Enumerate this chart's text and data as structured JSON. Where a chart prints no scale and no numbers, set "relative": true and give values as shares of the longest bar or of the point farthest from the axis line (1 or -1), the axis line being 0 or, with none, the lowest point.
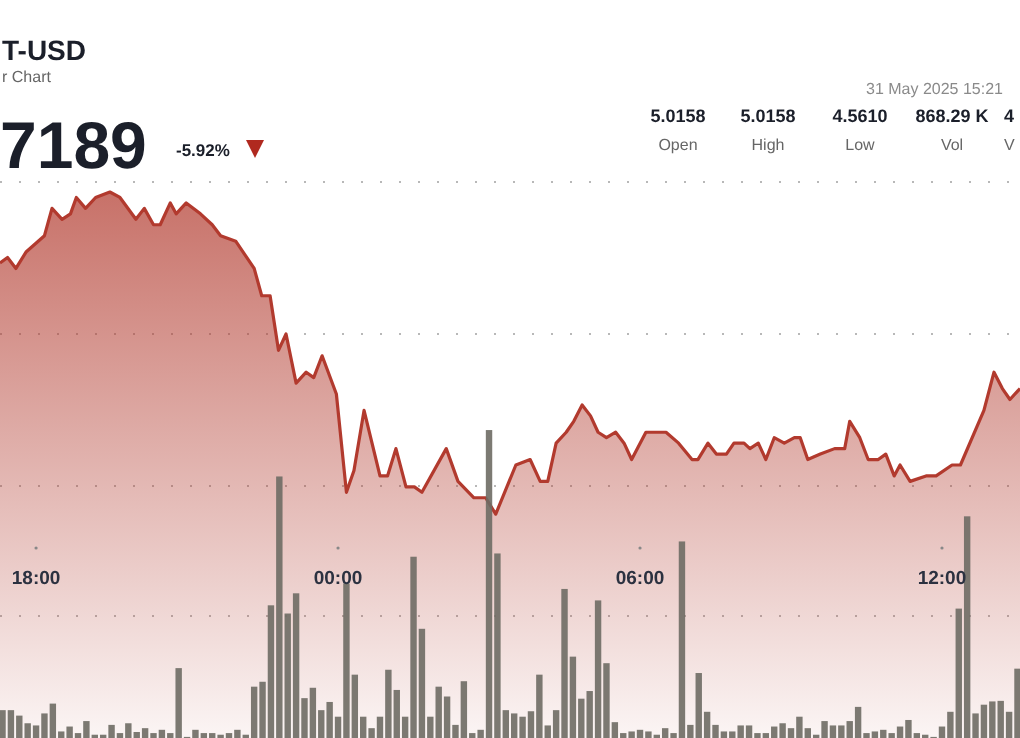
{
  "chart_data": {
    "type": "area",
    "title": "T-USD",
    "subtitle": "r Chart",
    "relative": true,
    "grid": true,
    "annotations": [
      "7189",
      "-5.92%",
      "31 May 2025 15:21",
      "5.0158",
      "Open",
      "5.0158",
      "High",
      "4.5610",
      "Low",
      "868.29 K",
      "Vol",
      "4",
      "V"
    ],
    "xlim": [
      "2025-05-30T17:17",
      "2025-05-31T13:33"
    ],
    "xticks": [
      {
        "value": "2025-05-30T18:00",
        "label": "18:00"
      },
      {
        "value": "2025-05-31T00:00",
        "label": "00:00"
      },
      {
        "value": "2025-05-31T06:00",
        "label": "06:00"
      },
      {
        "value": "2025-05-31T12:00",
        "label": "12:00"
      }
    ],
    "series": [
      {
        "color": "#b23a2e",
        "x": [
          "2025-05-30T17:17",
          "2025-05-30T17:26",
          "2025-05-30T17:36",
          "2025-05-30T17:48",
          "2025-05-30T18:10",
          "2025-05-30T18:19",
          "2025-05-30T18:31",
          "2025-05-30T18:41",
          "2025-05-30T18:48",
          "2025-05-30T18:59",
          "2025-05-30T19:11",
          "2025-05-30T19:28",
          "2025-05-30T19:40",
          "2025-05-30T19:59",
          "2025-05-30T20:09",
          "2025-05-30T20:20",
          "2025-05-30T20:28",
          "2025-05-30T20:40",
          "2025-05-30T20:47",
          "2025-05-30T20:59",
          "2025-05-30T21:16",
          "2025-05-30T21:30",
          "2025-05-30T21:40",
          "2025-05-30T21:58",
          "2025-05-30T22:20",
          "2025-05-30T22:29",
          "2025-05-30T22:39",
          "2025-05-30T22:49",
          "2025-05-30T22:58",
          "2025-05-30T23:10",
          "2025-05-30T23:22",
          "2025-05-30T23:31",
          "2025-05-30T23:41",
          "2025-05-30T23:58",
          "2025-05-31T00:10",
          "2025-05-31T00:19",
          "2025-05-31T00:31",
          "2025-05-31T00:50",
          "2025-05-31T00:59",
          "2025-05-31T01:09",
          "2025-05-31T01:21",
          "2025-05-31T01:31",
          "2025-05-31T01:40",
          "2025-05-31T02:09",
          "2025-05-31T02:23",
          "2025-05-31T02:42",
          "2025-05-31T02:56",
          "2025-05-31T03:08",
          "2025-05-31T03:32",
          "2025-05-31T03:49",
          "2025-05-31T04:01",
          "2025-05-31T04:10",
          "2025-05-31T04:20",
          "2025-05-31T04:32",
          "2025-05-31T04:41",
          "2025-05-31T04:51",
          "2025-05-31T05:01",
          "2025-05-31T05:10",
          "2025-05-31T05:20",
          "2025-05-31T05:31",
          "2025-05-31T05:41",
          "2025-05-31T05:50",
          "2025-05-31T06:07",
          "2025-05-31T06:31",
          "2025-05-31T06:46",
          "2025-05-31T07:02",
          "2025-05-31T07:09",
          "2025-05-31T07:21",
          "2025-05-31T07:31",
          "2025-05-31T07:43",
          "2025-05-31T07:52",
          "2025-05-31T08:04",
          "2025-05-31T08:11",
          "2025-05-31T08:21",
          "2025-05-31T08:30",
          "2025-05-31T08:40",
          "2025-05-31T08:52",
          "2025-05-31T09:04",
          "2025-05-31T09:11",
          "2025-05-31T09:20",
          "2025-05-31T09:35",
          "2025-05-31T09:52",
          "2025-05-31T10:04",
          "2025-05-31T10:10",
          "2025-05-31T10:22",
          "2025-05-31T10:32",
          "2025-05-31T10:44",
          "2025-05-31T10:53",
          "2025-05-31T11:03",
          "2025-05-31T11:10",
          "2025-05-31T11:22",
          "2025-05-31T11:41",
          "2025-05-31T11:53",
          "2025-05-31T12:12",
          "2025-05-31T12:22",
          "2025-05-31T12:50",
          "2025-05-31T13:02",
          "2025-05-31T13:12",
          "2025-05-31T13:21",
          "2025-05-31T13:33"
        ],
        "values": [
          0.87,
          0.88,
          0.86,
          0.89,
          0.92,
          0.97,
          0.95,
          0.96,
          0.99,
          0.97,
          0.99,
          1,
          0.99,
          0.95,
          0.97,
          0.94,
          0.94,
          0.98,
          0.96,
          0.98,
          0.96,
          0.94,
          0.92,
          0.91,
          0.86,
          0.81,
          0.81,
          0.71,
          0.74,
          0.65,
          0.67,
          0.66,
          0.7,
          0.63,
          0.45,
          0.49,
          0.6,
          0.48,
          0.48,
          0.53,
          0.46,
          0.46,
          0.45,
          0.53,
          0.47,
          0.44,
          0.44,
          0.41,
          0.5,
          0.51,
          0.47,
          0.47,
          0.54,
          0.56,
          0.58,
          0.61,
          0.59,
          0.56,
          0.55,
          0.56,
          0.54,
          0.51,
          0.56,
          0.56,
          0.54,
          0.51,
          0.51,
          0.54,
          0.52,
          0.52,
          0.54,
          0.54,
          0.53,
          0.54,
          0.51,
          0.55,
          0.54,
          0.55,
          0.55,
          0.51,
          0.52,
          0.53,
          0.53,
          0.58,
          0.55,
          0.51,
          0.51,
          0.52,
          0.48,
          0.5,
          0.47,
          0.48,
          0.48,
          0.5,
          0.5,
          0.6,
          0.67,
          0.64,
          0.62,
          0.64
        ]
      },
      {
        "type": "bar",
        "color": "#6e6c64",
        "x": [
          "2025-05-30T17:20",
          "2025-05-30T17:30",
          "2025-05-30T17:40",
          "2025-05-30T17:50",
          "2025-05-30T18:00",
          "2025-05-30T18:10",
          "2025-05-30T18:20",
          "2025-05-30T18:30",
          "2025-05-30T18:40",
          "2025-05-30T18:50",
          "2025-05-30T19:00",
          "2025-05-30T19:10",
          "2025-05-30T19:20",
          "2025-05-30T19:30",
          "2025-05-30T19:40",
          "2025-05-30T19:50",
          "2025-05-30T20:00",
          "2025-05-30T20:10",
          "2025-05-30T20:20",
          "2025-05-30T20:30",
          "2025-05-30T20:40",
          "2025-05-30T20:50",
          "2025-05-30T21:00",
          "2025-05-30T21:10",
          "2025-05-30T21:20",
          "2025-05-30T21:30",
          "2025-05-30T21:40",
          "2025-05-30T21:50",
          "2025-05-30T22:00",
          "2025-05-30T22:10",
          "2025-05-30T22:20",
          "2025-05-30T22:30",
          "2025-05-30T22:40",
          "2025-05-30T22:50",
          "2025-05-30T23:00",
          "2025-05-30T23:10",
          "2025-05-30T23:20",
          "2025-05-30T23:30",
          "2025-05-30T23:40",
          "2025-05-30T23:50",
          "2025-05-31T00:00",
          "2025-05-31T00:10",
          "2025-05-31T00:20",
          "2025-05-31T00:30",
          "2025-05-31T00:40",
          "2025-05-31T00:50",
          "2025-05-31T01:00",
          "2025-05-31T01:10",
          "2025-05-31T01:20",
          "2025-05-31T01:30",
          "2025-05-31T01:40",
          "2025-05-31T01:50",
          "2025-05-31T02:00",
          "2025-05-31T02:10",
          "2025-05-31T02:20",
          "2025-05-31T02:30",
          "2025-05-31T02:40",
          "2025-05-31T02:50",
          "2025-05-31T03:00",
          "2025-05-31T03:10",
          "2025-05-31T03:20",
          "2025-05-31T03:30",
          "2025-05-31T03:40",
          "2025-05-31T03:50",
          "2025-05-31T04:00",
          "2025-05-31T04:10",
          "2025-05-31T04:20",
          "2025-05-31T04:30",
          "2025-05-31T04:40",
          "2025-05-31T04:50",
          "2025-05-31T05:00",
          "2025-05-31T05:10",
          "2025-05-31T05:20",
          "2025-05-31T05:30",
          "2025-05-31T05:40",
          "2025-05-31T05:50",
          "2025-05-31T06:00",
          "2025-05-31T06:10",
          "2025-05-31T06:20",
          "2025-05-31T06:30",
          "2025-05-31T06:40",
          "2025-05-31T06:50",
          "2025-05-31T07:00",
          "2025-05-31T07:10",
          "2025-05-31T07:20",
          "2025-05-31T07:30",
          "2025-05-31T07:40",
          "2025-05-31T07:50",
          "2025-05-31T08:00",
          "2025-05-31T08:10",
          "2025-05-31T08:20",
          "2025-05-31T08:30",
          "2025-05-31T08:40",
          "2025-05-31T08:50",
          "2025-05-31T09:00",
          "2025-05-31T09:10",
          "2025-05-31T09:20",
          "2025-05-31T09:30",
          "2025-05-31T09:40",
          "2025-05-31T09:50",
          "2025-05-31T10:00",
          "2025-05-31T10:10",
          "2025-05-31T10:20",
          "2025-05-31T10:30",
          "2025-05-31T10:40",
          "2025-05-31T10:50",
          "2025-05-31T11:00",
          "2025-05-31T11:10",
          "2025-05-31T11:20",
          "2025-05-31T11:30",
          "2025-05-31T11:40",
          "2025-05-31T11:50",
          "2025-05-31T12:00",
          "2025-05-31T12:10",
          "2025-05-31T12:20",
          "2025-05-31T12:30",
          "2025-05-31T12:40",
          "2025-05-31T12:50",
          "2025-05-31T13:00",
          "2025-05-31T13:10",
          "2025-05-31T13:20",
          "2025-05-31T13:30"
        ],
        "values": [
          0.051,
          0.051,
          0.041,
          0.027,
          0.023,
          0.045,
          0.063,
          0.012,
          0.021,
          0.009,
          0.031,
          0.006,
          0.006,
          0.024,
          0.009,
          0.027,
          0.011,
          0.018,
          0.009,
          0.015,
          0.009,
          0.128,
          0.002,
          0.015,
          0.009,
          0.009,
          0.006,
          0.009,
          0.015,
          0.006,
          0.094,
          0.103,
          0.243,
          0.479,
          0.228,
          0.265,
          0.073,
          0.092,
          0.051,
          0.066,
          0.039,
          0.283,
          0.116,
          0.039,
          0.018,
          0.039,
          0.125,
          0.088,
          0.039,
          0.332,
          0.2,
          0.039,
          0.094,
          0.076,
          0.024,
          0.104,
          0.009,
          0.015,
          0.564,
          0.338,
          0.051,
          0.045,
          0.039,
          0.049,
          0.116,
          0.023,
          0.051,
          0.273,
          0.149,
          0.072,
          0.086,
          0.252,
          0.137,
          0.029,
          0.009,
          0.012,
          0.015,
          0.012,
          0.006,
          0.018,
          0.009,
          0.36,
          0.024,
          0.119,
          0.048,
          0.024,
          0.012,
          0.012,
          0.023,
          0.023,
          0.009,
          0.009,
          0.021,
          0.027,
          0.018,
          0.039,
          0.018,
          0.006,
          0.031,
          0.023,
          0.023,
          0.031,
          0.057,
          0.009,
          0.012,
          0.015,
          0.009,
          0.021,
          0.033,
          0.009,
          0.006,
          0.002,
          0.021,
          0.048,
          0.237,
          0.406,
          0.045,
          0.061,
          0.067,
          0.068,
          0.048,
          0.127
        ]
      }
    ]
  }
}
